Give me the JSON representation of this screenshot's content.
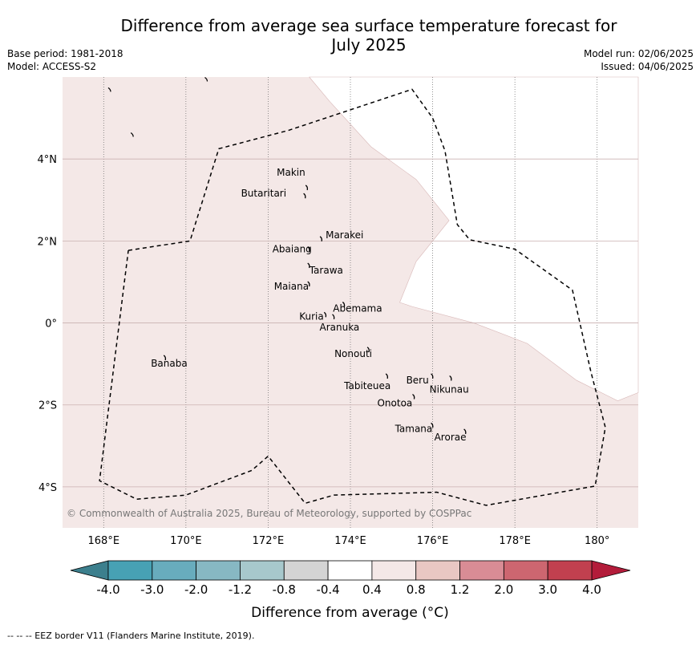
{
  "header": {
    "title_line1": "Difference from average sea surface temperature forecast for",
    "title_line2": "July 2025",
    "base_period": "Base period: 1981-2018",
    "model": "Model: ACCESS-S2",
    "model_run": "Model run: 02/06/2025",
    "issued": "Issued: 04/06/2025"
  },
  "map": {
    "lon_range": [
      167,
      181
    ],
    "lat_range": [
      -5,
      6
    ],
    "x_ticks": [
      {
        "value": 168,
        "label": "168°E"
      },
      {
        "value": 170,
        "label": "170°E"
      },
      {
        "value": 172,
        "label": "172°E"
      },
      {
        "value": 174,
        "label": "174°E"
      },
      {
        "value": 176,
        "label": "176°E"
      },
      {
        "value": 178,
        "label": "178°E"
      },
      {
        "value": 180,
        "label": "180°"
      }
    ],
    "y_ticks": [
      {
        "value": 4,
        "label": "4°N"
      },
      {
        "value": 2,
        "label": "2°N"
      },
      {
        "value": 0,
        "label": "0°"
      },
      {
        "value": -2,
        "label": "2°S"
      },
      {
        "value": -4,
        "label": "4°S"
      }
    ],
    "islands": [
      {
        "name": "Makin",
        "lon": 172.95,
        "lat": 3.3
      },
      {
        "name": "Butaritari",
        "lon": 172.9,
        "lat": 3.1
      },
      {
        "name": "Marakei",
        "lon": 173.3,
        "lat": 2.05
      },
      {
        "name": "Abaiang",
        "lon": 173.0,
        "lat": 1.8
      },
      {
        "name": "Tarawa",
        "lon": 173.0,
        "lat": 1.4
      },
      {
        "name": "Maiana",
        "lon": 173.0,
        "lat": 0.95
      },
      {
        "name": "Abemama",
        "lon": 173.85,
        "lat": 0.45
      },
      {
        "name": "Kuria",
        "lon": 173.4,
        "lat": 0.2
      },
      {
        "name": "Aranuka",
        "lon": 173.6,
        "lat": 0.15
      },
      {
        "name": "Nonouti",
        "lon": 174.45,
        "lat": -0.65
      },
      {
        "name": "Banaba",
        "lon": 169.5,
        "lat": -0.85
      },
      {
        "name": "Tabiteuea",
        "lon": 174.9,
        "lat": -1.3
      },
      {
        "name": "Beru",
        "lon": 176.0,
        "lat": -1.3
      },
      {
        "name": "Nikunau",
        "lon": 176.45,
        "lat": -1.35
      },
      {
        "name": "Onotoa",
        "lon": 175.55,
        "lat": -1.8
      },
      {
        "name": "Tamana",
        "lon": 176.0,
        "lat": -2.5
      },
      {
        "name": "Arorae",
        "lon": 176.8,
        "lat": -2.65
      }
    ],
    "eez_boundary": [
      [
        168.6,
        1.77
      ],
      [
        170.1,
        2.0
      ],
      [
        170.8,
        4.25
      ],
      [
        172.5,
        4.7
      ],
      [
        175.5,
        5.7
      ],
      [
        176.0,
        5.0
      ],
      [
        176.3,
        4.2
      ],
      [
        176.6,
        2.4
      ],
      [
        176.9,
        2.03
      ],
      [
        178.0,
        1.8
      ],
      [
        179.4,
        0.8
      ],
      [
        179.85,
        -1.2
      ],
      [
        180.2,
        -2.55
      ],
      [
        179.95,
        -3.98
      ],
      [
        177.3,
        -4.45
      ],
      [
        176.1,
        -4.13
      ],
      [
        173.6,
        -4.2
      ],
      [
        172.9,
        -4.4
      ],
      [
        172.0,
        -3.25
      ],
      [
        171.6,
        -3.6
      ],
      [
        170.0,
        -4.2
      ],
      [
        168.8,
        -4.3
      ],
      [
        167.9,
        -3.85
      ],
      [
        168.6,
        1.77
      ]
    ],
    "land_color": "#f4e8e7",
    "white_region_color": "#ffffff",
    "copyright": "© Commonwealth of Australia 2025, Bureau of Meteorology, supported by COSPPac"
  },
  "colorbar": {
    "tick_labels": [
      "-4.0",
      "-3.0",
      "-2.0",
      "-1.2",
      "-0.8",
      "-0.4",
      "0.4",
      "0.8",
      "1.2",
      "2.0",
      "3.0",
      "4.0"
    ],
    "colors": [
      "#47a1b4",
      "#68acbd",
      "#87b8c3",
      "#a7c8cc",
      "#d4d4d4",
      "#ffffff",
      "#f4e8e7",
      "#e9c7c3",
      "#d98c95",
      "#cd6670",
      "#c1404f"
    ],
    "under_color": "#3c7f8d",
    "over_color": "#b31c3a",
    "label": "Difference from average (°C)"
  },
  "footnote": "-- -- -- EEZ border V11 (Flanders Marine Institute, 2019)."
}
